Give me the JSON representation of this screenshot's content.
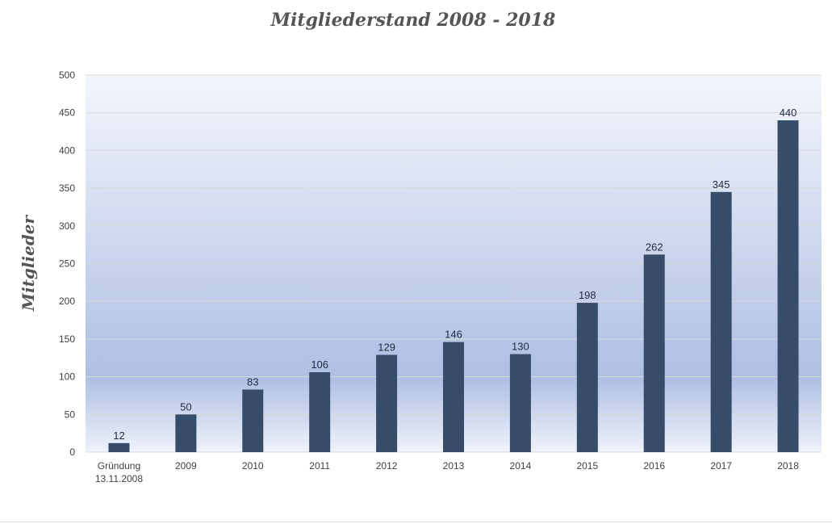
{
  "chart_data": {
    "type": "bar",
    "title": "Mitgliederstand 2008 - 2018",
    "xlabel": "",
    "ylabel": "Mitglieder",
    "categories": [
      [
        "Gründung",
        "13.11.2008"
      ],
      [
        "2009"
      ],
      [
        "2010"
      ],
      [
        "2011"
      ],
      [
        "2012"
      ],
      [
        "2013"
      ],
      [
        "2014"
      ],
      [
        "2015"
      ],
      [
        "2016"
      ],
      [
        "2017"
      ],
      [
        "2018"
      ]
    ],
    "values": [
      12,
      50,
      83,
      106,
      129,
      146,
      130,
      198,
      262,
      345,
      440
    ],
    "ylim": [
      0,
      500
    ],
    "yticks": [
      0,
      50,
      100,
      150,
      200,
      250,
      300,
      350,
      400,
      450,
      500
    ],
    "grid": true,
    "legend": "none",
    "colors": {
      "bar": "#364c68",
      "plot_bg_top": "#f4f6fc",
      "plot_bg_mid": "#aebfe3",
      "plot_bg_bottom": "#eef2fa",
      "grid": "#d9d9d9"
    }
  }
}
